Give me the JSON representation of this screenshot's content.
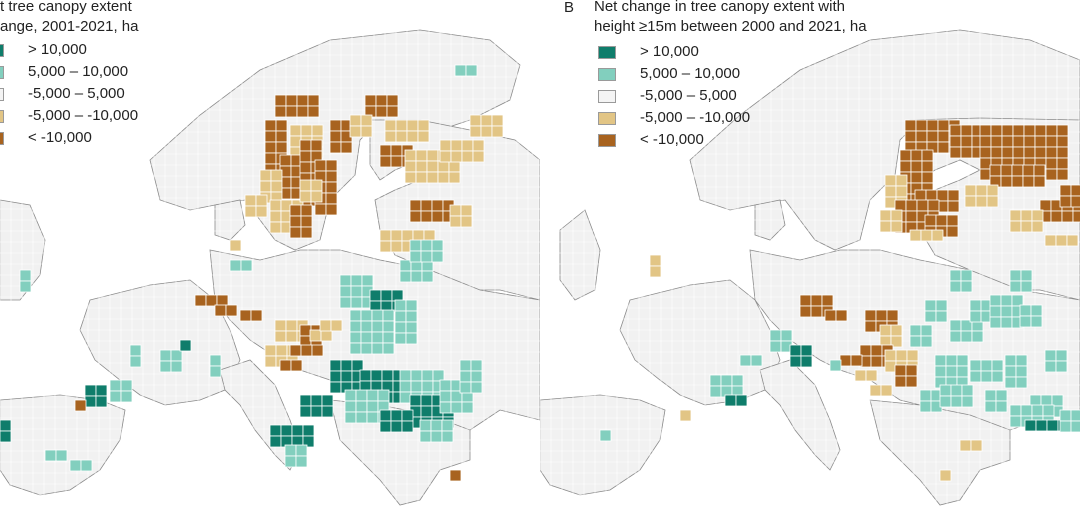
{
  "panels": [
    {
      "id": "a",
      "letter": "",
      "title_lines": [
        "t tree canopy extent",
        "ange, 2001-2021, ha"
      ]
    },
    {
      "id": "b",
      "letter": "B",
      "title_lines": [
        "Net change in tree canopy extent with",
        "height ≥15m between 2000 and 2021, ha"
      ]
    }
  ],
  "legend": [
    {
      "label": "> 10,000",
      "color": "#0f7d6b"
    },
    {
      "label": "5,000 – 10,000",
      "color": "#82cfbe"
    },
    {
      "label": "-5,000 – 5,000",
      "color": "#f4f4f4"
    },
    {
      "label": "-5,000 – -10,000",
      "color": "#e2c585"
    },
    {
      "label": "< -10,000",
      "color": "#a8631f"
    }
  ],
  "colors": {
    "land": "#f1f1f1",
    "sea": "#ffffff",
    "border": "#8a8a8a",
    "grid": "#ffffff"
  },
  "map_data": {
    "description_free": true,
    "cell_classes_by_region_a": {
      "scandinavia": "<-10,000 and -5,000–-10,000",
      "finland": "-5,000–-10,000",
      "central_europe": "mixed",
      "balkans_hungary": ">10,000 and 5,000–10,000",
      "iberia": "5,000–10,000"
    },
    "cell_classes_by_region_b": {
      "scandinavia": "<-10,000",
      "finland": "<-10,000",
      "central_europe": "<-10,000 and -5,000–-10,000",
      "balkans_hungary": "5,000–10,000",
      "france": "5,000–10,000"
    }
  }
}
